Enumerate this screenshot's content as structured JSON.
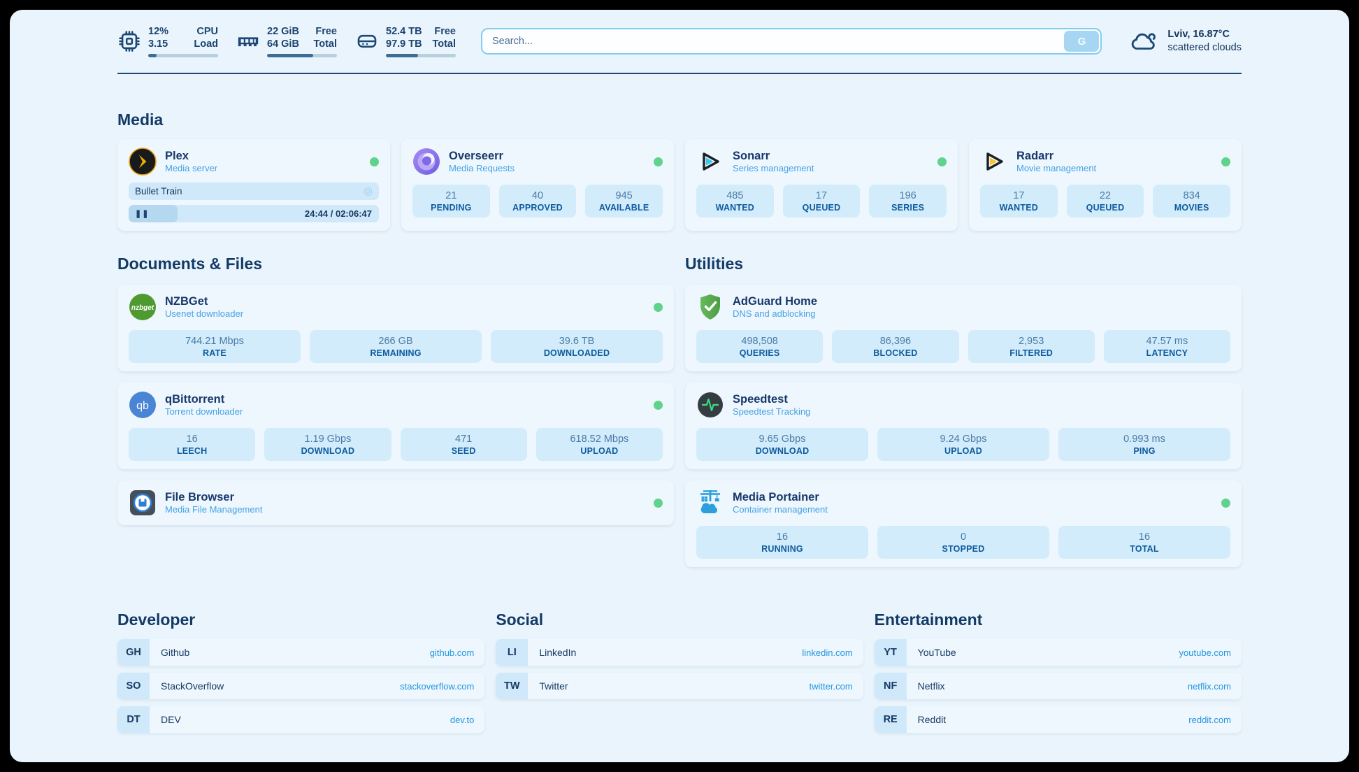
{
  "topbar": {
    "cpu": {
      "value": "12%",
      "sub": "3.15",
      "label_top": "CPU",
      "label_bottom": "Load",
      "progress_pct": 12
    },
    "ram": {
      "value": "22 GiB",
      "sub": "64 GiB",
      "label_top": "Free",
      "label_bottom": "Total",
      "progress_pct": 66
    },
    "disk": {
      "value": "52.4 TB",
      "sub": "97.9 TB",
      "label_top": "Free",
      "label_bottom": "Total",
      "progress_pct": 46
    },
    "search": {
      "placeholder": "Search...",
      "button_label": "G"
    },
    "weather": {
      "location": "Lviv, 16.87°C",
      "condition": "scattered clouds"
    }
  },
  "media": {
    "heading": "Media",
    "plex": {
      "name": "Plex",
      "description": "Media server",
      "now_playing": "Bullet Train",
      "time_display": "24:44 / 02:06:47",
      "progress_pct": 19.5
    },
    "overseerr": {
      "name": "Overseerr",
      "description": "Media Requests",
      "stats": [
        {
          "value": "21",
          "label": "PENDING"
        },
        {
          "value": "40",
          "label": "APPROVED"
        },
        {
          "value": "945",
          "label": "AVAILABLE"
        }
      ]
    },
    "sonarr": {
      "name": "Sonarr",
      "description": "Series management",
      "stats": [
        {
          "value": "485",
          "label": "WANTED"
        },
        {
          "value": "17",
          "label": "QUEUED"
        },
        {
          "value": "196",
          "label": "SERIES"
        }
      ]
    },
    "radarr": {
      "name": "Radarr",
      "description": "Movie management",
      "stats": [
        {
          "value": "17",
          "label": "WANTED"
        },
        {
          "value": "22",
          "label": "QUEUED"
        },
        {
          "value": "834",
          "label": "MOVIES"
        }
      ]
    }
  },
  "documents": {
    "heading": "Documents & Files",
    "nzbget": {
      "name": "NZBGet",
      "description": "Usenet downloader",
      "stats": [
        {
          "value": "744.21 Mbps",
          "label": "RATE"
        },
        {
          "value": "266 GB",
          "label": "REMAINING"
        },
        {
          "value": "39.6 TB",
          "label": "DOWNLOADED"
        }
      ]
    },
    "qbittorrent": {
      "name": "qBittorrent",
      "description": "Torrent downloader",
      "stats": [
        {
          "value": "16",
          "label": "LEECH"
        },
        {
          "value": "1.19 Gbps",
          "label": "DOWNLOAD"
        },
        {
          "value": "471",
          "label": "SEED"
        },
        {
          "value": "618.52 Mbps",
          "label": "UPLOAD"
        }
      ]
    },
    "filebrowser": {
      "name": "File Browser",
      "description": "Media File Management"
    }
  },
  "utilities": {
    "heading": "Utilities",
    "adguard": {
      "name": "AdGuard Home",
      "description": "DNS and adblocking",
      "stats": [
        {
          "value": "498,508",
          "label": "QUERIES"
        },
        {
          "value": "86,396",
          "label": "BLOCKED"
        },
        {
          "value": "2,953",
          "label": "FILTERED"
        },
        {
          "value": "47.57 ms",
          "label": "LATENCY"
        }
      ]
    },
    "speedtest": {
      "name": "Speedtest",
      "description": "Speedtest Tracking",
      "stats": [
        {
          "value": "9.65 Gbps",
          "label": "DOWNLOAD"
        },
        {
          "value": "9.24 Gbps",
          "label": "UPLOAD"
        },
        {
          "value": "0.993 ms",
          "label": "PING"
        }
      ]
    },
    "portainer": {
      "name": "Media Portainer",
      "description": "Container management",
      "stats": [
        {
          "value": "16",
          "label": "RUNNING"
        },
        {
          "value": "0",
          "label": "STOPPED"
        },
        {
          "value": "16",
          "label": "TOTAL"
        }
      ]
    }
  },
  "bookmarks": {
    "developer": {
      "heading": "Developer",
      "links": [
        {
          "abbr": "GH",
          "name": "Github",
          "url": "github.com"
        },
        {
          "abbr": "SO",
          "name": "StackOverflow",
          "url": "stackoverflow.com"
        },
        {
          "abbr": "DT",
          "name": "DEV",
          "url": "dev.to"
        }
      ]
    },
    "social": {
      "heading": "Social",
      "links": [
        {
          "abbr": "LI",
          "name": "LinkedIn",
          "url": "linkedin.com"
        },
        {
          "abbr": "TW",
          "name": "Twitter",
          "url": "twitter.com"
        }
      ]
    },
    "entertainment": {
      "heading": "Entertainment",
      "links": [
        {
          "abbr": "YT",
          "name": "YouTube",
          "url": "youtube.com"
        },
        {
          "abbr": "NF",
          "name": "Netflix",
          "url": "netflix.com"
        },
        {
          "abbr": "RE",
          "name": "Reddit",
          "url": "reddit.com"
        }
      ]
    }
  },
  "colors": {
    "status_online": "#5fd38c",
    "accent_blue": "#2296e0",
    "text_dark": "#173a63",
    "stat_tile": "#d2ecfb"
  },
  "session_icon": "◎",
  "pause_icon": "❚❚"
}
